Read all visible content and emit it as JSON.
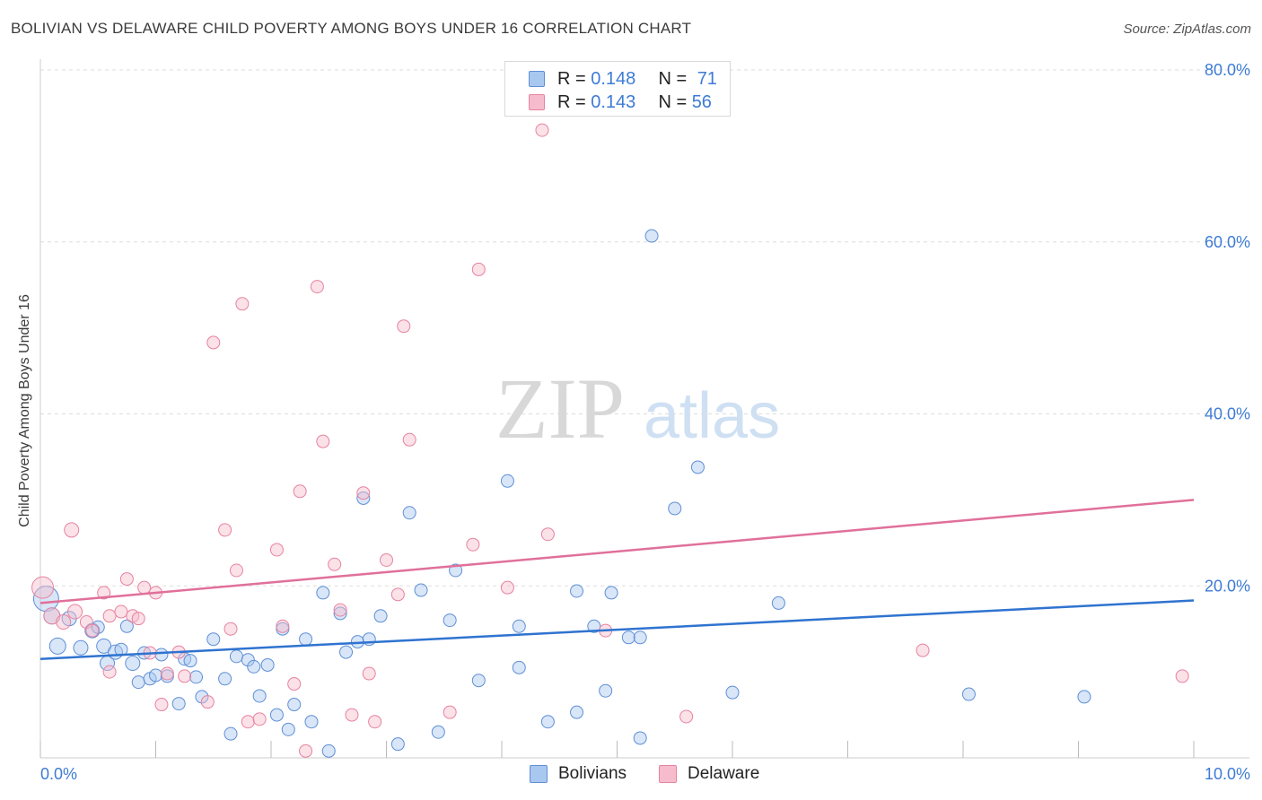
{
  "title": "BOLIVIAN VS DELAWARE CHILD POVERTY AMONG BOYS UNDER 16 CORRELATION CHART",
  "source": "Source: ZipAtlas.com",
  "watermark": {
    "zip": "ZIP",
    "atlas": "atlas"
  },
  "legend": {
    "rows": [
      {
        "r_label": "R = ",
        "r_value": "0.148",
        "n_label": "N = ",
        "n_value": "71"
      },
      {
        "r_label": "R = ",
        "r_value": "0.143",
        "n_label": "N = ",
        "n_value": "56"
      }
    ]
  },
  "colors": {
    "bolivians_fill": "#a9c8f0",
    "bolivians_stroke": "#5f8fd6",
    "bolivians_line": "#2f73d0",
    "delaware_fill": "#f6bccd",
    "delaware_stroke": "#e7839f",
    "delaware_line": "#e0709a",
    "tick_label": "#3d7bd5",
    "grid": "#dddddd"
  },
  "chart_data": {
    "type": "scatter",
    "title": "BOLIVIAN VS DELAWARE CHILD POVERTY AMONG BOYS UNDER 16 CORRELATION CHART",
    "xlabel": "",
    "ylabel": "Child Poverty Among Boys Under 16",
    "xlim": [
      0,
      10
    ],
    "ylim": [
      0,
      80
    ],
    "x_tick_labels": [
      "0.0%",
      "10.0%"
    ],
    "y_ticks": [
      20,
      40,
      60,
      80
    ],
    "y_tick_labels": [
      "20.0%",
      "40.0%",
      "60.0%",
      "80.0%"
    ],
    "grid": true,
    "legend_placement": "top-center and bottom",
    "series": [
      {
        "name": "Bolivians",
        "r": 0.148,
        "n": 71,
        "trend": {
          "x": [
            0,
            10
          ],
          "y": [
            11.5,
            18.3
          ]
        },
        "points": [
          [
            0.05,
            18.5,
            14
          ],
          [
            0.1,
            16.5,
            9
          ],
          [
            0.15,
            13.0,
            9
          ],
          [
            0.25,
            16.2,
            8
          ],
          [
            0.35,
            12.8,
            8
          ],
          [
            0.45,
            14.8,
            8
          ],
          [
            0.5,
            15.2,
            7
          ],
          [
            0.55,
            13.0,
            8
          ],
          [
            0.58,
            11.0,
            8
          ],
          [
            0.65,
            12.3,
            8
          ],
          [
            0.7,
            12.6,
            7
          ],
          [
            0.75,
            15.3,
            7
          ],
          [
            0.8,
            11.0,
            8
          ],
          [
            0.85,
            8.8,
            7
          ],
          [
            0.9,
            12.2,
            7
          ],
          [
            0.95,
            9.2,
            7
          ],
          [
            1.0,
            9.6,
            7
          ],
          [
            1.05,
            12.0,
            7
          ],
          [
            1.1,
            9.5,
            7
          ],
          [
            1.2,
            6.3,
            7
          ],
          [
            1.25,
            11.5,
            7
          ],
          [
            1.3,
            11.3,
            7
          ],
          [
            1.35,
            9.4,
            7
          ],
          [
            1.4,
            7.1,
            7
          ],
          [
            1.5,
            13.8,
            7
          ],
          [
            1.6,
            9.2,
            7
          ],
          [
            1.65,
            2.8,
            7
          ],
          [
            1.7,
            11.8,
            7
          ],
          [
            1.8,
            11.4,
            7
          ],
          [
            1.85,
            10.6,
            7
          ],
          [
            1.9,
            7.2,
            7
          ],
          [
            1.97,
            10.8,
            7
          ],
          [
            2.05,
            5.0,
            7
          ],
          [
            2.1,
            15.0,
            7
          ],
          [
            2.15,
            3.3,
            7
          ],
          [
            2.2,
            6.2,
            7
          ],
          [
            2.3,
            13.8,
            7
          ],
          [
            2.35,
            4.2,
            7
          ],
          [
            2.45,
            19.2,
            7
          ],
          [
            2.5,
            0.8,
            7
          ],
          [
            2.6,
            16.8,
            7
          ],
          [
            2.65,
            12.3,
            7
          ],
          [
            2.75,
            13.5,
            7
          ],
          [
            2.8,
            30.2,
            7
          ],
          [
            2.85,
            13.8,
            7
          ],
          [
            2.95,
            16.5,
            7
          ],
          [
            3.1,
            1.6,
            7
          ],
          [
            3.2,
            28.5,
            7
          ],
          [
            3.3,
            19.5,
            7
          ],
          [
            3.45,
            3.0,
            7
          ],
          [
            3.55,
            16.0,
            7
          ],
          [
            3.6,
            21.8,
            7
          ],
          [
            3.8,
            9.0,
            7
          ],
          [
            4.05,
            32.2,
            7
          ],
          [
            4.15,
            15.3,
            7
          ],
          [
            4.15,
            10.5,
            7
          ],
          [
            4.4,
            4.2,
            7
          ],
          [
            4.65,
            19.4,
            7
          ],
          [
            4.65,
            5.3,
            7
          ],
          [
            4.8,
            15.3,
            7
          ],
          [
            4.9,
            7.8,
            7
          ],
          [
            4.95,
            19.2,
            7
          ],
          [
            5.1,
            14.0,
            7
          ],
          [
            5.2,
            14.0,
            7
          ],
          [
            5.3,
            60.7,
            7
          ],
          [
            5.2,
            2.3,
            7
          ],
          [
            5.5,
            29.0,
            7
          ],
          [
            5.7,
            33.8,
            7
          ],
          [
            6.0,
            7.6,
            7
          ],
          [
            6.4,
            18.0,
            7
          ],
          [
            8.05,
            7.4,
            7
          ],
          [
            9.05,
            7.1,
            7
          ]
        ]
      },
      {
        "name": "Delaware",
        "r": 0.143,
        "n": 56,
        "trend": {
          "x": [
            0,
            10
          ],
          "y": [
            18.0,
            30.0
          ]
        },
        "points": [
          [
            0.02,
            19.8,
            12
          ],
          [
            0.1,
            16.5,
            9
          ],
          [
            0.2,
            15.8,
            8
          ],
          [
            0.27,
            26.5,
            8
          ],
          [
            0.3,
            17.0,
            8
          ],
          [
            0.4,
            15.8,
            7
          ],
          [
            0.45,
            14.8,
            7
          ],
          [
            0.55,
            19.2,
            7
          ],
          [
            0.6,
            10.0,
            7
          ],
          [
            0.6,
            16.5,
            7
          ],
          [
            0.7,
            17.0,
            7
          ],
          [
            0.75,
            20.8,
            7
          ],
          [
            0.8,
            16.5,
            7
          ],
          [
            0.85,
            16.2,
            7
          ],
          [
            0.9,
            19.8,
            7
          ],
          [
            0.95,
            12.2,
            7
          ],
          [
            1.0,
            19.2,
            7
          ],
          [
            1.05,
            6.2,
            7
          ],
          [
            1.1,
            9.8,
            7
          ],
          [
            1.2,
            12.3,
            7
          ],
          [
            1.25,
            9.5,
            7
          ],
          [
            1.45,
            6.5,
            7
          ],
          [
            1.5,
            48.3,
            7
          ],
          [
            1.6,
            26.5,
            7
          ],
          [
            1.65,
            15.0,
            7
          ],
          [
            1.7,
            21.8,
            7
          ],
          [
            1.75,
            52.8,
            7
          ],
          [
            1.8,
            4.2,
            7
          ],
          [
            1.9,
            4.5,
            7
          ],
          [
            2.05,
            24.2,
            7
          ],
          [
            2.1,
            15.3,
            7
          ],
          [
            2.2,
            8.6,
            7
          ],
          [
            2.25,
            31.0,
            7
          ],
          [
            2.3,
            0.8,
            7
          ],
          [
            2.4,
            54.8,
            7
          ],
          [
            2.45,
            36.8,
            7
          ],
          [
            2.55,
            22.5,
            7
          ],
          [
            2.6,
            17.2,
            7
          ],
          [
            2.7,
            5.0,
            7
          ],
          [
            2.8,
            30.8,
            7
          ],
          [
            2.85,
            9.8,
            7
          ],
          [
            2.9,
            4.2,
            7
          ],
          [
            3.0,
            23.0,
            7
          ],
          [
            3.1,
            19.0,
            7
          ],
          [
            3.15,
            50.2,
            7
          ],
          [
            3.2,
            37.0,
            7
          ],
          [
            3.55,
            5.3,
            7
          ],
          [
            3.75,
            24.8,
            7
          ],
          [
            3.8,
            56.8,
            7
          ],
          [
            4.05,
            19.8,
            7
          ],
          [
            4.35,
            73.0,
            7
          ],
          [
            4.4,
            26.0,
            7
          ],
          [
            4.9,
            14.8,
            7
          ],
          [
            5.6,
            4.8,
            7
          ],
          [
            7.65,
            12.5,
            7
          ],
          [
            9.9,
            9.5,
            7
          ]
        ]
      }
    ]
  },
  "bottom_legend": [
    {
      "label": "Bolivians"
    },
    {
      "label": "Delaware"
    }
  ]
}
